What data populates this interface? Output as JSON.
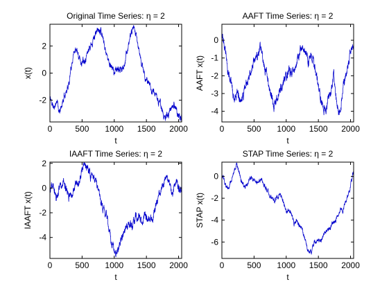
{
  "chart_data": [
    {
      "type": "line",
      "title": "Original Time Series: η = 2",
      "xlabel": "t",
      "ylabel": "x(t)",
      "xlim": [
        0,
        2048
      ],
      "ylim": [
        -3.6,
        3.6
      ],
      "xticks": [
        0,
        500,
        1000,
        1500,
        2000
      ],
      "yticks": [
        -2,
        0,
        2
      ],
      "grid": false,
      "series_color": "#0000cc",
      "seed": 11,
      "noise": 0.16,
      "keypoints": [
        [
          0,
          -1.8
        ],
        [
          60,
          -2.6
        ],
        [
          110,
          -2.0
        ],
        [
          150,
          -3.0
        ],
        [
          200,
          -2.1
        ],
        [
          260,
          -1.2
        ],
        [
          300,
          -0.7
        ],
        [
          330,
          0.4
        ],
        [
          380,
          1.8
        ],
        [
          430,
          1.5
        ],
        [
          480,
          0.8
        ],
        [
          560,
          1.2
        ],
        [
          620,
          2.0
        ],
        [
          680,
          2.6
        ],
        [
          740,
          3.2
        ],
        [
          790,
          3.3
        ],
        [
          840,
          2.3
        ],
        [
          900,
          1.0
        ],
        [
          950,
          0.6
        ],
        [
          1000,
          0.0
        ],
        [
          1060,
          0.3
        ],
        [
          1120,
          0.2
        ],
        [
          1170,
          1.0
        ],
        [
          1230,
          2.3
        ],
        [
          1290,
          3.3
        ],
        [
          1330,
          2.9
        ],
        [
          1370,
          2.0
        ],
        [
          1430,
          0.6
        ],
        [
          1480,
          -0.2
        ],
        [
          1530,
          -0.8
        ],
        [
          1580,
          -1.2
        ],
        [
          1640,
          -1.5
        ],
        [
          1690,
          -2.1
        ],
        [
          1740,
          -2.6
        ],
        [
          1780,
          -3.4
        ],
        [
          1830,
          -3.1
        ],
        [
          1880,
          -2.6
        ],
        [
          1930,
          -2.3
        ],
        [
          1980,
          -2.9
        ],
        [
          2020,
          -3.4
        ],
        [
          2048,
          -3.1
        ]
      ]
    },
    {
      "type": "line",
      "title": "AAFT Time Series: η = 2",
      "xlabel": "t",
      "ylabel": "AAFT x(t)",
      "xlim": [
        0,
        2048
      ],
      "ylim": [
        -4.6,
        0.9
      ],
      "xticks": [
        0,
        500,
        1000,
        1500,
        2000
      ],
      "yticks": [
        -4,
        -3,
        -2,
        -1,
        0
      ],
      "grid": false,
      "series_color": "#0000cc",
      "seed": 23,
      "noise": 0.17,
      "keypoints": [
        [
          0,
          0.6
        ],
        [
          40,
          -0.5
        ],
        [
          90,
          -1.6
        ],
        [
          140,
          -2.4
        ],
        [
          190,
          -3.2
        ],
        [
          240,
          -3.0
        ],
        [
          300,
          -3.4
        ],
        [
          350,
          -2.8
        ],
        [
          400,
          -2.2
        ],
        [
          450,
          -1.7
        ],
        [
          500,
          -1.2
        ],
        [
          560,
          -0.8
        ],
        [
          600,
          -0.5
        ],
        [
          640,
          -1.1
        ],
        [
          700,
          -2.0
        ],
        [
          760,
          -2.9
        ],
        [
          800,
          -3.7
        ],
        [
          850,
          -3.3
        ],
        [
          900,
          -2.9
        ],
        [
          960,
          -2.3
        ],
        [
          1020,
          -2.0
        ],
        [
          1080,
          -1.8
        ],
        [
          1140,
          -1.5
        ],
        [
          1180,
          -1.2
        ],
        [
          1220,
          -0.7
        ],
        [
          1260,
          -0.3
        ],
        [
          1300,
          -0.6
        ],
        [
          1340,
          -1.2
        ],
        [
          1380,
          -0.8
        ],
        [
          1420,
          -1.1
        ],
        [
          1460,
          -2.0
        ],
        [
          1510,
          -2.9
        ],
        [
          1560,
          -3.6
        ],
        [
          1610,
          -4.0
        ],
        [
          1650,
          -3.3
        ],
        [
          1700,
          -3.0
        ],
        [
          1740,
          -2.0
        ],
        [
          1780,
          -3.3
        ],
        [
          1820,
          -4.1
        ],
        [
          1860,
          -3.4
        ],
        [
          1900,
          -2.3
        ],
        [
          1950,
          -1.7
        ],
        [
          2000,
          -0.5
        ],
        [
          2048,
          0.0
        ]
      ]
    },
    {
      "type": "line",
      "title": "IAAFT Time Series: η = 2",
      "xlabel": "t",
      "ylabel": "IAAFT x(t)",
      "xlim": [
        0,
        2048
      ],
      "ylim": [
        -5.7,
        2.1
      ],
      "xticks": [
        0,
        500,
        1000,
        1500,
        2000
      ],
      "yticks": [
        -4,
        -2,
        0,
        2
      ],
      "grid": false,
      "series_color": "#0000cc",
      "seed": 37,
      "noise": 0.22,
      "keypoints": [
        [
          0,
          -0.3
        ],
        [
          50,
          0.2
        ],
        [
          100,
          -0.9
        ],
        [
          150,
          0.3
        ],
        [
          200,
          0.6
        ],
        [
          250,
          -0.2
        ],
        [
          300,
          -0.8
        ],
        [
          350,
          -0.4
        ],
        [
          400,
          0.6
        ],
        [
          450,
          0.3
        ],
        [
          500,
          1.2
        ],
        [
          540,
          1.9
        ],
        [
          580,
          1.6
        ],
        [
          620,
          1.2
        ],
        [
          670,
          0.8
        ],
        [
          720,
          0.4
        ],
        [
          760,
          -0.4
        ],
        [
          800,
          -1.2
        ],
        [
          840,
          -1.8
        ],
        [
          880,
          -2.4
        ],
        [
          920,
          -3.2
        ],
        [
          960,
          -4.4
        ],
        [
          1000,
          -5.1
        ],
        [
          1040,
          -5.5
        ],
        [
          1080,
          -4.5
        ],
        [
          1120,
          -3.9
        ],
        [
          1180,
          -3.3
        ],
        [
          1230,
          -2.8
        ],
        [
          1280,
          -3.0
        ],
        [
          1330,
          -2.4
        ],
        [
          1380,
          -2.2
        ],
        [
          1430,
          -2.8
        ],
        [
          1480,
          -2.3
        ],
        [
          1540,
          -2.7
        ],
        [
          1600,
          -2.4
        ],
        [
          1650,
          -1.5
        ],
        [
          1700,
          -0.5
        ],
        [
          1740,
          0.2
        ],
        [
          1780,
          0.6
        ],
        [
          1820,
          0.9
        ],
        [
          1860,
          0.2
        ],
        [
          1900,
          -0.5
        ],
        [
          1940,
          0.4
        ],
        [
          1980,
          0.2
        ],
        [
          2020,
          -0.2
        ],
        [
          2048,
          0.0
        ]
      ]
    },
    {
      "type": "line",
      "title": "STAP Time Series: η = 2",
      "xlabel": "t",
      "ylabel": "STAP x(t)",
      "xlim": [
        0,
        2048
      ],
      "ylim": [
        -7.5,
        1.3
      ],
      "xticks": [
        0,
        500,
        1000,
        1500,
        2000
      ],
      "yticks": [
        -6,
        -4,
        -2,
        0
      ],
      "grid": false,
      "series_color": "#0000cc",
      "seed": 53,
      "noise": 0.13,
      "keypoints": [
        [
          0,
          0.1
        ],
        [
          40,
          -0.5
        ],
        [
          80,
          -1.2
        ],
        [
          120,
          -0.8
        ],
        [
          150,
          -0.2
        ],
        [
          190,
          0.6
        ],
        [
          230,
          1.1
        ],
        [
          270,
          0.4
        ],
        [
          300,
          -0.3
        ],
        [
          340,
          -0.8
        ],
        [
          380,
          -0.9
        ],
        [
          420,
          -0.4
        ],
        [
          460,
          -0.1
        ],
        [
          500,
          -0.4
        ],
        [
          540,
          -0.6
        ],
        [
          600,
          -0.3
        ],
        [
          650,
          -0.6
        ],
        [
          700,
          -1.3
        ],
        [
          740,
          -1.7
        ],
        [
          780,
          -2.0
        ],
        [
          820,
          -2.2
        ],
        [
          860,
          -1.9
        ],
        [
          900,
          -1.7
        ],
        [
          950,
          -2.2
        ],
        [
          1000,
          -3.2
        ],
        [
          1040,
          -3.0
        ],
        [
          1080,
          -3.3
        ],
        [
          1120,
          -4.4
        ],
        [
          1160,
          -4.0
        ],
        [
          1200,
          -4.6
        ],
        [
          1240,
          -4.7
        ],
        [
          1280,
          -5.5
        ],
        [
          1320,
          -6.5
        ],
        [
          1360,
          -7.0
        ],
        [
          1400,
          -6.8
        ],
        [
          1440,
          -5.9
        ],
        [
          1480,
          -5.8
        ],
        [
          1530,
          -6.0
        ],
        [
          1580,
          -5.4
        ],
        [
          1630,
          -5.1
        ],
        [
          1680,
          -4.8
        ],
        [
          1730,
          -4.2
        ],
        [
          1780,
          -3.9
        ],
        [
          1830,
          -3.2
        ],
        [
          1880,
          -3.0
        ],
        [
          1920,
          -2.4
        ],
        [
          1960,
          -1.8
        ],
        [
          2000,
          -0.8
        ],
        [
          2030,
          0.1
        ],
        [
          2048,
          0.3
        ]
      ]
    }
  ]
}
